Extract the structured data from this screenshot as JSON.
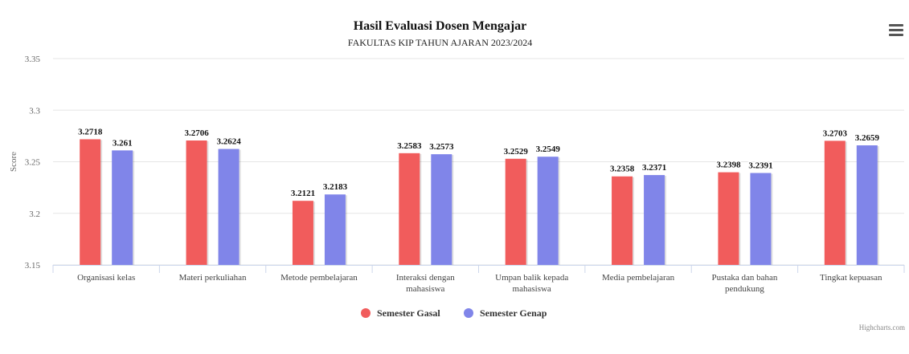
{
  "chart_data": {
    "type": "bar",
    "title": "Hasil Evaluasi Dosen Mengajar",
    "subtitle": "FAKULTAS KIP TAHUN AJARAN 2023/2024",
    "ylabel": "Score",
    "xlabel": "",
    "ylim": [
      3.15,
      3.35
    ],
    "yticks": [
      "3.15",
      "3.2",
      "3.25",
      "3.3",
      "3.35"
    ],
    "grid": true,
    "legend_position": "bottom-center",
    "categories": [
      [
        "Organisasi kelas"
      ],
      [
        "Materi perkuliahan"
      ],
      [
        "Metode pembelajaran"
      ],
      [
        "Interaksi dengan",
        "mahasiswa"
      ],
      [
        "Umpan balik kepada",
        "mahasiswa"
      ],
      [
        "Media pembelajaran"
      ],
      [
        "Pustaka dan bahan",
        "pendukung"
      ],
      [
        "Tingkat kepuasan"
      ]
    ],
    "series": [
      {
        "name": "Semester Gasal",
        "color": "#f15c5c",
        "values": [
          3.2718,
          3.2706,
          3.2121,
          3.2583,
          3.2529,
          3.2358,
          3.2398,
          3.2703
        ],
        "labels": [
          "3.2718",
          "3.2706",
          "3.2121",
          "3.2583",
          "3.2529",
          "3.2358",
          "3.2398",
          "3.2703"
        ]
      },
      {
        "name": "Semester Genap",
        "color": "#8085e9",
        "values": [
          3.261,
          3.2624,
          3.2183,
          3.2573,
          3.2549,
          3.2371,
          3.2391,
          3.2659
        ],
        "labels": [
          "3.261",
          "3.2624",
          "3.2183",
          "3.2573",
          "3.2549",
          "3.2371",
          "3.2391",
          "3.2659"
        ]
      }
    ]
  },
  "menu_icon": "hamburger-menu-icon",
  "credits": "Highcharts.com"
}
